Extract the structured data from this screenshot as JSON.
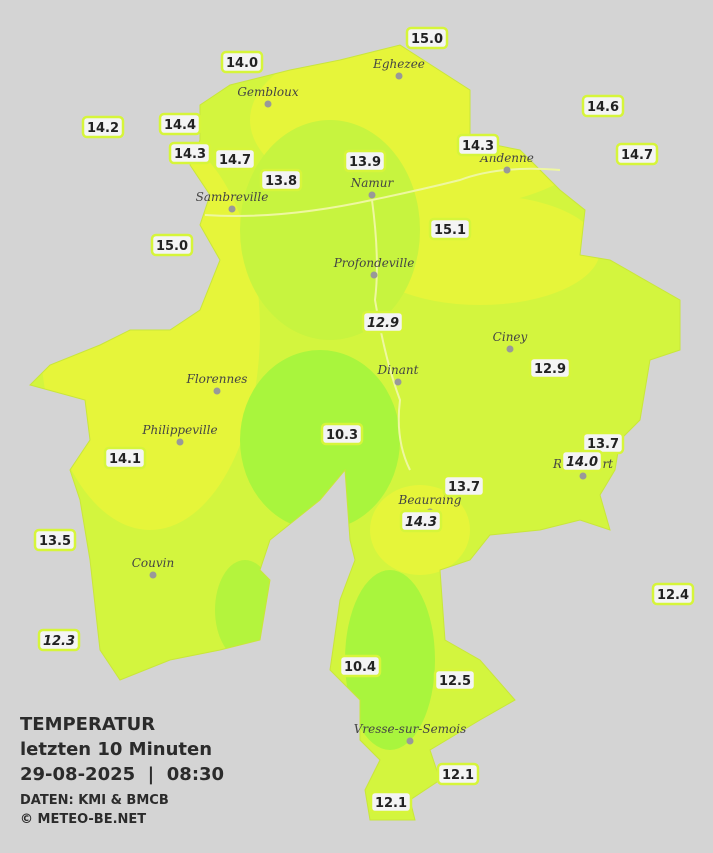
{
  "title": {
    "heading": "TEMPERATUR",
    "subtitle": "letzten 10 Minuten",
    "datetime": "29-08-2025  |  08:30",
    "source": "DATEN: KMI & BMCB",
    "copyright": "© METEO-BE.NET"
  },
  "cities": [
    "Eghezee",
    "Gembloux",
    "Andenne",
    "Namur",
    "Sambreville",
    "Profondeville",
    "Ciney",
    "Dinant",
    "Florennes",
    "Philippeville",
    "Rochefort",
    "Beauraing",
    "Couvin",
    "Vresse-sur-Semois"
  ],
  "stations": [
    "15.0",
    "14.0",
    "14.6",
    "14.2",
    "14.4",
    "14.3",
    "14.7",
    "14.3",
    "14.7",
    "13.9",
    "13.8",
    "15.1",
    "15.0",
    "12.9",
    "12.9",
    "10.3",
    "13.7",
    "14.0",
    "14.1",
    "13.7",
    "14.3",
    "13.5",
    "12.4",
    "12.3",
    "10.4",
    "12.5",
    "12.1",
    "12.1"
  ]
}
